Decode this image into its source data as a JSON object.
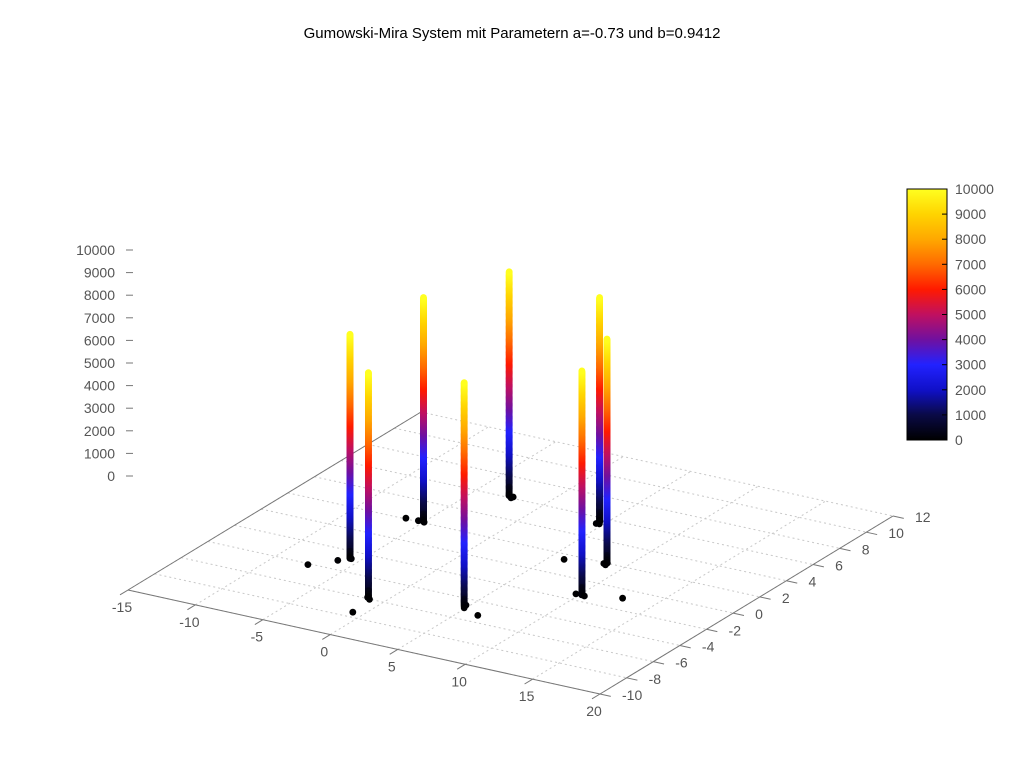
{
  "chart_data": {
    "type": "scatter",
    "title": "Gumowski-Mira System mit Parametern a=-0.73 und b=0.9412",
    "xlabel": "",
    "ylabel": "",
    "zlabel": "",
    "parameters": {
      "a": -0.73,
      "b": 0.9412
    },
    "x_ticks": [
      "-15",
      "-10",
      "-5",
      "0",
      "5",
      "10",
      "15",
      "20"
    ],
    "y_ticks": [
      "-10",
      "-8",
      "-6",
      "-4",
      "-2",
      "0",
      "2",
      "4",
      "6",
      "8",
      "10",
      "12"
    ],
    "z_ticks": [
      "0",
      "1000",
      "2000",
      "3000",
      "4000",
      "5000",
      "6000",
      "7000",
      "8000",
      "9000",
      "10000"
    ],
    "colorbar_ticks": [
      "0",
      "1000",
      "2000",
      "3000",
      "4000",
      "5000",
      "6000",
      "7000",
      "8000",
      "9000",
      "10000"
    ],
    "xlim": [
      -15,
      20
    ],
    "ylim": [
      -10,
      12
    ],
    "zlim": [
      0,
      10000
    ],
    "color_range": [
      0,
      10000
    ],
    "colormap": [
      "#000000",
      "#0a0a46",
      "#1010c8",
      "#2222ff",
      "#7010a0",
      "#c01060",
      "#ff1a00",
      "#ff6a00",
      "#ffa800",
      "#ffd400",
      "#ffff20"
    ],
    "grid": true,
    "points_note_count": 10000,
    "series": [
      {
        "x": -2.5,
        "y": 1.2,
        "z": 500
      },
      {
        "x": -2.8,
        "y": 1.0,
        "z": 1500
      },
      {
        "x": -2.3,
        "y": 0.9,
        "z": 2500
      },
      {
        "x": -2.4,
        "y": 1.1,
        "z": 3500
      },
      {
        "x": -2.2,
        "y": 1.3,
        "z": 4500
      },
      {
        "x": -2.6,
        "y": 1.2,
        "z": 5500
      },
      {
        "x": -2.1,
        "y": 1.0,
        "z": 6500
      },
      {
        "x": -2.5,
        "y": 0.8,
        "z": 7500
      },
      {
        "x": -2.3,
        "y": 1.2,
        "z": 8500
      },
      {
        "x": -2.4,
        "y": 1.1,
        "z": 9500
      }
    ]
  }
}
